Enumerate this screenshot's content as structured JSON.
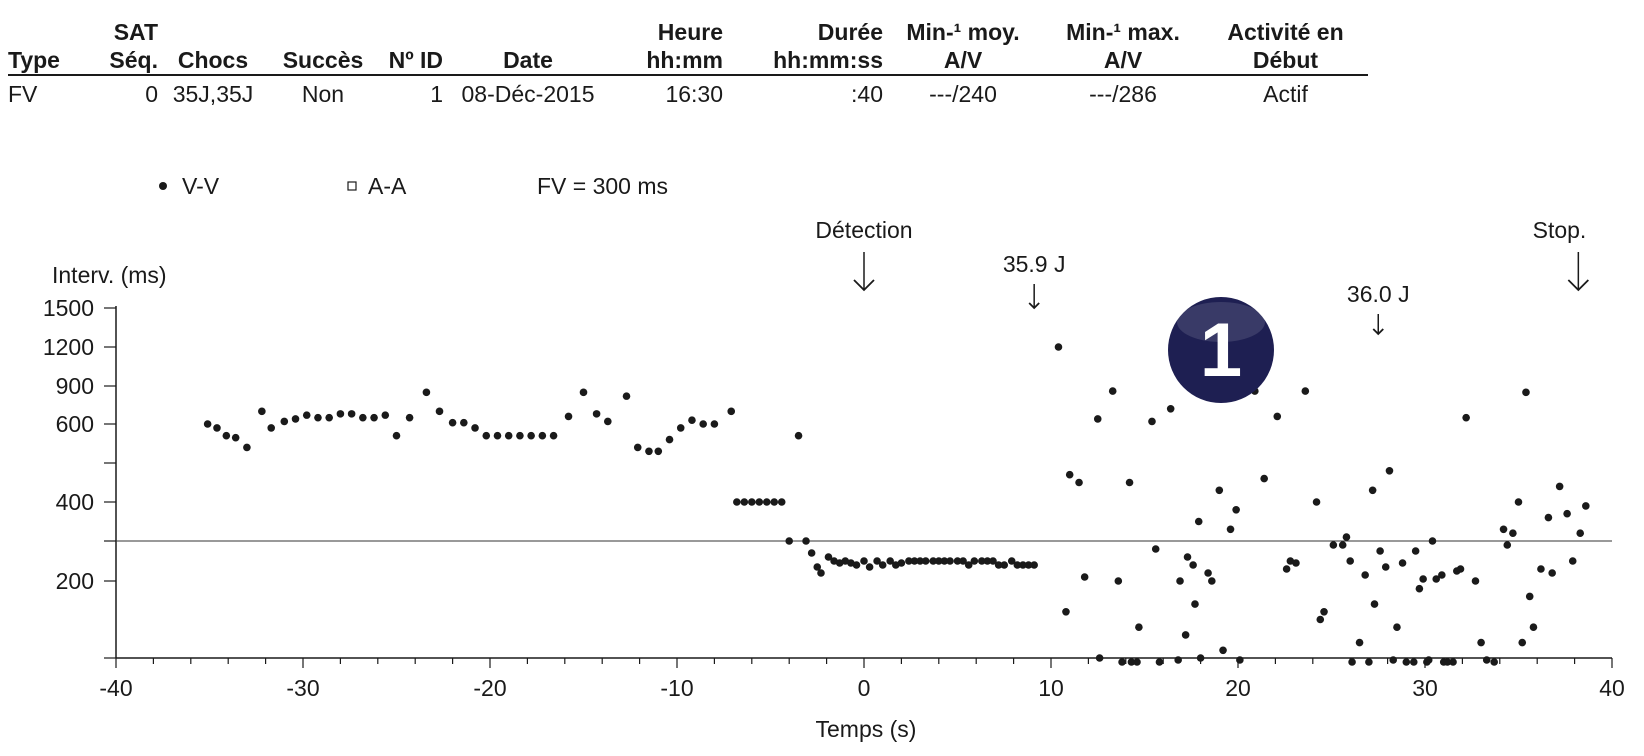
{
  "table": {
    "headers": [
      [
        "Type",
        ""
      ],
      [
        "SAT",
        "Séq."
      ],
      [
        "Chocs",
        ""
      ],
      [
        "Succès",
        ""
      ],
      [
        "Nº ID",
        ""
      ],
      [
        "Date",
        ""
      ],
      [
        "Heure",
        "hh:mm"
      ],
      [
        "Durée",
        "hh:mm:ss"
      ],
      [
        "Min-¹ moy.",
        "A/V"
      ],
      [
        "Min-¹ max.",
        "A/V"
      ],
      [
        "Activité en",
        "Début"
      ]
    ],
    "row": [
      "FV",
      "0",
      "35J,35J",
      "Non",
      "1",
      "08-Déc-2015",
      "16:30",
      ":40",
      "---/240",
      "---/286",
      "Actif"
    ]
  },
  "legend": {
    "vv_label": "V-V",
    "aa_label": "A-A",
    "fv_label": "FV = 300 ms"
  },
  "badge": {
    "text": "1",
    "color": "#1e1f52"
  },
  "chart_data": {
    "type": "scatter",
    "xlabel": "Temps (s)",
    "ylabel": "Interv. (ms)",
    "xlim": [
      -40,
      40
    ],
    "x_ticks": [
      -40,
      -30,
      -20,
      -10,
      0,
      10,
      20,
      30,
      40
    ],
    "y_ticks": [
      1500,
      1200,
      900,
      600,
      400,
      200
    ],
    "fv_threshold_ms": 300,
    "annotations": [
      {
        "label": "Détection",
        "x": 0,
        "arrow": "large"
      },
      {
        "label": "35.9 J",
        "x": 9.1,
        "arrow": "small"
      },
      {
        "label": "36.0 J",
        "x": 27.5,
        "arrow": "small"
      },
      {
        "label": "Stop.",
        "x": 38.2,
        "arrow": "large"
      }
    ],
    "series": [
      {
        "name": "V-V",
        "marker": "dot",
        "points": [
          [
            -35.1,
            600
          ],
          [
            -34.6,
            590
          ],
          [
            -34.1,
            570
          ],
          [
            -33.6,
            565
          ],
          [
            -33.0,
            540
          ],
          [
            -32.2,
            700
          ],
          [
            -31.7,
            590
          ],
          [
            -31.0,
            620
          ],
          [
            -30.4,
            640
          ],
          [
            -29.8,
            670
          ],
          [
            -29.2,
            650
          ],
          [
            -28.6,
            650
          ],
          [
            -28.0,
            680
          ],
          [
            -27.4,
            680
          ],
          [
            -26.8,
            650
          ],
          [
            -26.2,
            650
          ],
          [
            -25.6,
            670
          ],
          [
            -25.0,
            570
          ],
          [
            -24.3,
            650
          ],
          [
            -23.4,
            850
          ],
          [
            -22.7,
            700
          ],
          [
            -22.0,
            610
          ],
          [
            -21.4,
            610
          ],
          [
            -20.8,
            590
          ],
          [
            -20.2,
            570
          ],
          [
            -19.6,
            570
          ],
          [
            -19.0,
            570
          ],
          [
            -18.4,
            570
          ],
          [
            -17.8,
            570
          ],
          [
            -17.2,
            570
          ],
          [
            -16.6,
            570
          ],
          [
            -15.8,
            660
          ],
          [
            -15.0,
            850
          ],
          [
            -14.3,
            680
          ],
          [
            -13.7,
            620
          ],
          [
            -12.7,
            820
          ],
          [
            -12.1,
            540
          ],
          [
            -11.5,
            530
          ],
          [
            -11.0,
            530
          ],
          [
            -10.4,
            560
          ],
          [
            -9.8,
            590
          ],
          [
            -9.2,
            630
          ],
          [
            -8.6,
            600
          ],
          [
            -8.0,
            600
          ],
          [
            -7.1,
            700
          ],
          [
            -6.8,
            400
          ],
          [
            -6.4,
            400
          ],
          [
            -6.0,
            400
          ],
          [
            -5.6,
            400
          ],
          [
            -5.2,
            400
          ],
          [
            -4.8,
            400
          ],
          [
            -4.4,
            400
          ],
          [
            -4.0,
            300
          ],
          [
            -3.5,
            570
          ],
          [
            -3.1,
            300
          ],
          [
            -2.8,
            270
          ],
          [
            -2.5,
            235
          ],
          [
            -2.3,
            220
          ],
          [
            -1.9,
            260
          ],
          [
            -1.6,
            250
          ],
          [
            -1.3,
            245
          ],
          [
            -1.0,
            250
          ],
          [
            -0.7,
            245
          ],
          [
            -0.4,
            240
          ],
          [
            0.0,
            250
          ],
          [
            0.3,
            235
          ],
          [
            0.7,
            250
          ],
          [
            1.0,
            240
          ],
          [
            1.4,
            250
          ],
          [
            1.7,
            240
          ],
          [
            2.0,
            245
          ],
          [
            2.4,
            250
          ],
          [
            2.7,
            250
          ],
          [
            3.0,
            250
          ],
          [
            3.3,
            250
          ],
          [
            3.7,
            250
          ],
          [
            4.0,
            250
          ],
          [
            4.3,
            250
          ],
          [
            4.6,
            250
          ],
          [
            5.0,
            250
          ],
          [
            5.3,
            250
          ],
          [
            5.6,
            240
          ],
          [
            5.9,
            250
          ],
          [
            6.3,
            250
          ],
          [
            6.6,
            250
          ],
          [
            6.9,
            250
          ],
          [
            7.2,
            240
          ],
          [
            7.5,
            240
          ],
          [
            7.9,
            250
          ],
          [
            8.2,
            240
          ],
          [
            8.5,
            240
          ],
          [
            8.8,
            240
          ],
          [
            9.1,
            240
          ],
          [
            10.4,
            1200
          ],
          [
            10.8,
            180
          ],
          [
            11.0,
            470
          ],
          [
            11.5,
            450
          ],
          [
            11.8,
            210
          ],
          [
            12.5,
            640
          ],
          [
            12.6,
            150
          ],
          [
            13.3,
            860
          ],
          [
            13.6,
            200
          ],
          [
            13.8,
            140
          ],
          [
            14.2,
            450
          ],
          [
            14.3,
            140
          ],
          [
            14.6,
            140
          ],
          [
            14.7,
            170
          ],
          [
            15.4,
            620
          ],
          [
            15.6,
            280
          ],
          [
            15.8,
            140
          ],
          [
            16.4,
            720
          ],
          [
            16.8,
            145
          ],
          [
            16.9,
            200
          ],
          [
            17.2,
            165
          ],
          [
            17.3,
            260
          ],
          [
            17.6,
            240
          ],
          [
            17.7,
            185
          ],
          [
            17.9,
            350
          ],
          [
            18.0,
            150
          ],
          [
            18.4,
            220
          ],
          [
            18.6,
            200
          ],
          [
            19.0,
            430
          ],
          [
            19.2,
            155
          ],
          [
            19.6,
            330
          ],
          [
            19.9,
            380
          ],
          [
            20.1,
            145
          ],
          [
            20.9,
            860
          ],
          [
            21.4,
            460
          ],
          [
            22.1,
            660
          ],
          [
            22.6,
            230
          ],
          [
            22.8,
            250
          ],
          [
            23.1,
            245
          ],
          [
            23.6,
            860
          ],
          [
            24.2,
            400
          ],
          [
            24.4,
            175
          ],
          [
            24.6,
            180
          ],
          [
            25.1,
            290
          ],
          [
            25.6,
            290
          ],
          [
            25.8,
            310
          ],
          [
            26.0,
            250
          ],
          [
            26.1,
            140
          ],
          [
            26.5,
            160
          ],
          [
            26.8,
            215
          ],
          [
            27.0,
            140
          ],
          [
            27.2,
            430
          ],
          [
            27.3,
            185
          ],
          [
            27.6,
            275
          ],
          [
            27.9,
            235
          ],
          [
            28.1,
            480
          ],
          [
            28.3,
            145
          ],
          [
            28.5,
            170
          ],
          [
            28.8,
            245
          ],
          [
            29.0,
            140
          ],
          [
            29.4,
            140
          ],
          [
            29.5,
            275
          ],
          [
            29.7,
            195
          ],
          [
            29.9,
            205
          ],
          [
            30.1,
            140
          ],
          [
            30.2,
            145
          ],
          [
            30.4,
            300
          ],
          [
            30.6,
            205
          ],
          [
            30.9,
            215
          ],
          [
            31.0,
            140
          ],
          [
            31.2,
            140
          ],
          [
            31.5,
            140
          ],
          [
            31.7,
            225
          ],
          [
            31.9,
            230
          ],
          [
            32.2,
            650
          ],
          [
            32.7,
            200
          ],
          [
            33.0,
            160
          ],
          [
            33.3,
            145
          ],
          [
            33.7,
            140
          ],
          [
            34.2,
            330
          ],
          [
            34.4,
            290
          ],
          [
            34.7,
            320
          ],
          [
            35.0,
            400
          ],
          [
            35.2,
            160
          ],
          [
            35.4,
            850
          ],
          [
            35.6,
            190
          ],
          [
            35.8,
            170
          ],
          [
            36.2,
            230
          ],
          [
            36.6,
            360
          ],
          [
            36.8,
            220
          ],
          [
            37.2,
            440
          ],
          [
            37.6,
            370
          ],
          [
            37.9,
            250
          ],
          [
            38.3,
            320
          ],
          [
            38.6,
            390
          ]
        ]
      },
      {
        "name": "A-A",
        "marker": "square",
        "points": []
      }
    ]
  }
}
